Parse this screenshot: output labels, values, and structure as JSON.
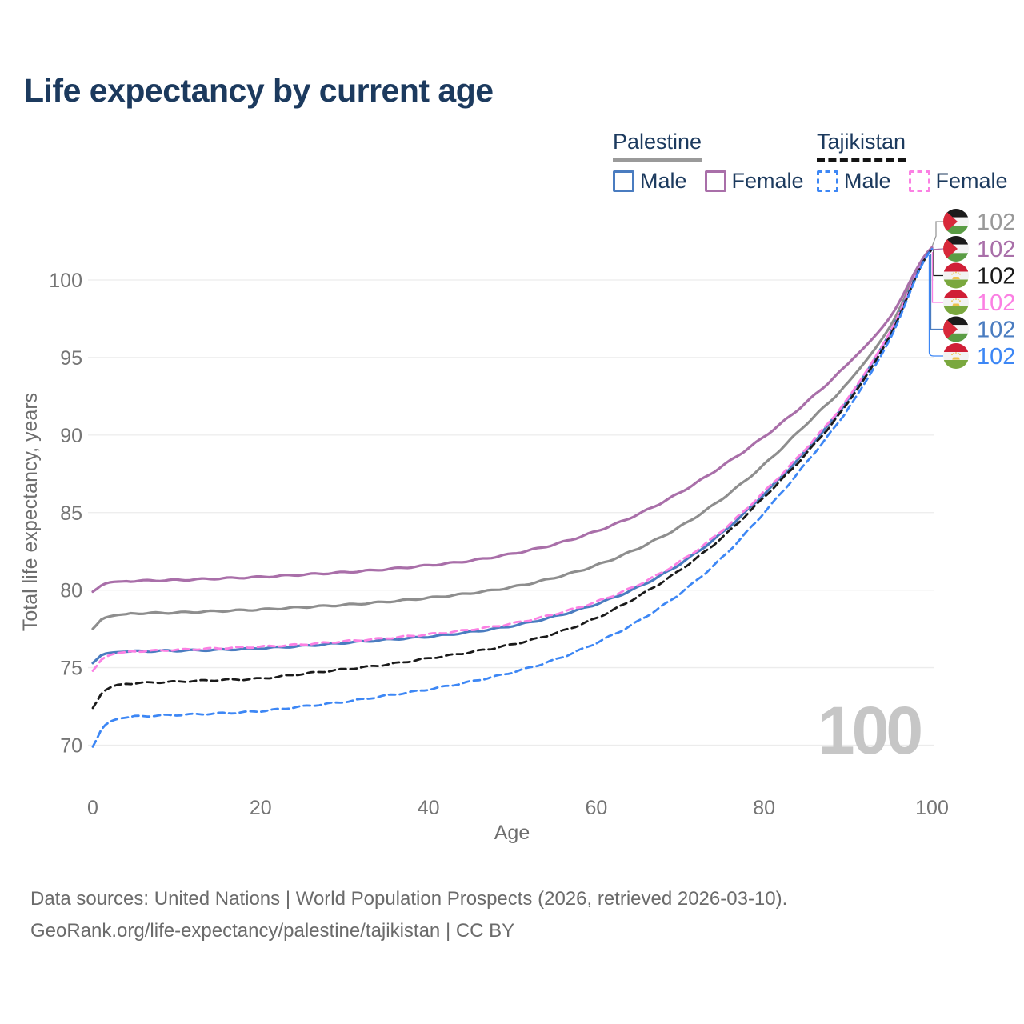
{
  "title": "Life expectancy by current age",
  "legend": {
    "groups": [
      {
        "title": "Palestine",
        "line_style": "solid",
        "underline_color": "#9a9a9a",
        "items": [
          {
            "label": "Male",
            "color": "#4a7cc0"
          },
          {
            "label": "Female",
            "color": "#a96fa9"
          }
        ]
      },
      {
        "title": "Tajikistan",
        "line_style": "dashed",
        "underline_color": "#141414",
        "items": [
          {
            "label": "Male",
            "color": "#3d87f5"
          },
          {
            "label": "Female",
            "color": "#fb80e3"
          }
        ]
      }
    ]
  },
  "footer": {
    "line1": "Data sources: United Nations | World Population Prospects (2026, retrieved 2026-03-10).",
    "line2": "GeoRank.org/life-expectancy/palestine/tajikistan | CC BY"
  },
  "chart_data": {
    "type": "line",
    "title": "Life expectancy by current age",
    "xlabel": "Age",
    "ylabel": "Total life expectancy, years",
    "x_ticks": [
      0,
      20,
      40,
      60,
      80,
      100
    ],
    "y_ticks": [
      70,
      75,
      80,
      85,
      90,
      95,
      100
    ],
    "xlim": [
      0,
      100
    ],
    "ylim": [
      68.5,
      103.5
    ],
    "grid": "horizontal",
    "legend_position": "top-right",
    "watermark": "100",
    "ages": [
      0,
      1,
      2,
      3,
      5,
      10,
      15,
      20,
      25,
      30,
      35,
      40,
      45,
      50,
      55,
      60,
      65,
      70,
      75,
      80,
      85,
      90,
      95,
      100
    ],
    "series": [
      {
        "name": "Palestine Both sexes",
        "country": "Palestine",
        "sex": "Both",
        "color": "#8e8e8e",
        "dash": false,
        "values": [
          77.5,
          78.1,
          78.3,
          78.4,
          78.5,
          78.55,
          78.65,
          78.75,
          78.9,
          79.05,
          79.25,
          79.5,
          79.8,
          80.2,
          80.8,
          81.6,
          82.7,
          84.1,
          85.9,
          88.1,
          90.7,
          93.4,
          97.0,
          102.05
        ]
      },
      {
        "name": "Palestine Female",
        "country": "Palestine",
        "sex": "Female",
        "color": "#a96fa9",
        "dash": false,
        "values": [
          79.9,
          80.3,
          80.5,
          80.55,
          80.6,
          80.65,
          80.75,
          80.85,
          81.0,
          81.15,
          81.35,
          81.6,
          81.9,
          82.35,
          82.95,
          83.8,
          84.9,
          86.3,
          88.0,
          89.9,
          92.1,
          94.6,
          97.6,
          102.1
        ]
      },
      {
        "name": "Palestine Male",
        "country": "Palestine",
        "sex": "Male",
        "color": "#4a7cc0",
        "dash": false,
        "values": [
          75.3,
          75.8,
          75.95,
          76.0,
          76.05,
          76.1,
          76.15,
          76.25,
          76.4,
          76.6,
          76.8,
          77.0,
          77.3,
          77.7,
          78.3,
          79.1,
          80.2,
          81.7,
          83.7,
          86.2,
          89.0,
          92.3,
          96.6,
          102.0
        ]
      },
      {
        "name": "Tajikistan Female",
        "country": "Tajikistan",
        "sex": "Female",
        "color": "#fb80e3",
        "dash": true,
        "values": [
          74.8,
          75.5,
          75.8,
          75.95,
          76.05,
          76.15,
          76.25,
          76.35,
          76.5,
          76.7,
          76.9,
          77.15,
          77.45,
          77.85,
          78.45,
          79.25,
          80.35,
          81.85,
          83.85,
          86.35,
          89.15,
          92.4,
          96.65,
          102.0
        ]
      },
      {
        "name": "Tajikistan Both sexes",
        "country": "Tajikistan",
        "sex": "Both",
        "color": "#1a1a1a",
        "dash": true,
        "values": [
          72.4,
          73.3,
          73.7,
          73.9,
          74.0,
          74.1,
          74.2,
          74.3,
          74.6,
          74.9,
          75.2,
          75.6,
          76.0,
          76.5,
          77.2,
          78.2,
          79.6,
          81.3,
          83.4,
          86.0,
          88.8,
          92.1,
          96.4,
          102.0
        ]
      },
      {
        "name": "Tajikistan Male",
        "country": "Tajikistan",
        "sex": "Male",
        "color": "#3d87f5",
        "dash": true,
        "values": [
          69.9,
          71.0,
          71.5,
          71.7,
          71.85,
          71.95,
          72.05,
          72.2,
          72.5,
          72.8,
          73.2,
          73.6,
          74.1,
          74.7,
          75.5,
          76.6,
          78.0,
          79.8,
          82.1,
          85.0,
          88.2,
          91.7,
          96.2,
          102.0
        ]
      }
    ],
    "end_labels": [
      {
        "value": "102",
        "flag": "palestine",
        "color": "#999999",
        "series": "Palestine Both sexes"
      },
      {
        "value": "102",
        "flag": "palestine",
        "color": "#a96fa9",
        "series": "Palestine Female"
      },
      {
        "value": "102",
        "flag": "tajikistan",
        "color": "#1a1a1a",
        "series": "Tajikistan Both sexes"
      },
      {
        "value": "102",
        "flag": "tajikistan",
        "color": "#fb80e3",
        "series": "Tajikistan Female"
      },
      {
        "value": "102",
        "flag": "palestine",
        "color": "#4a7cc0",
        "series": "Palestine Male"
      },
      {
        "value": "102",
        "flag": "tajikistan",
        "color": "#3d87f5",
        "series": "Tajikistan Male"
      }
    ]
  }
}
